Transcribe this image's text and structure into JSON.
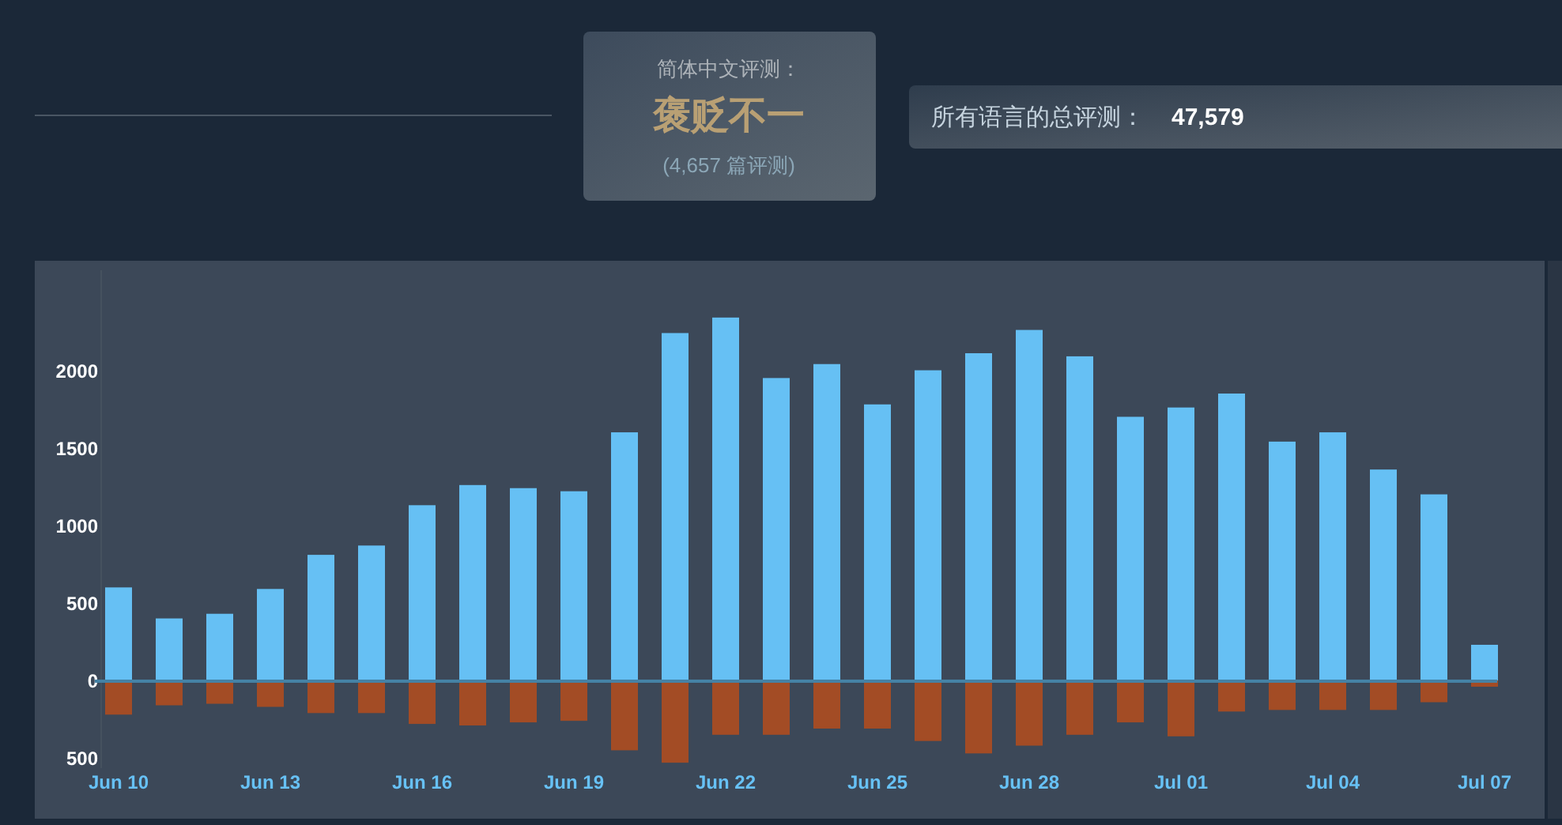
{
  "chart_data": {
    "type": "bar",
    "stacked": true,
    "annotations": [
      "简体中文评测：",
      "褒贬不一",
      "(4,657 篇评测)",
      "所有语言的总评测：",
      "47,579"
    ],
    "categories": [
      "Jun 10",
      null,
      null,
      "Jun 13",
      null,
      null,
      "Jun 16",
      null,
      null,
      "Jun 19",
      null,
      null,
      "Jun 22",
      null,
      null,
      "Jun 25",
      null,
      null,
      "Jun 28",
      null,
      null,
      "Jul 01",
      null,
      null,
      "Jul 04",
      null,
      null,
      "Jul 07"
    ],
    "series": [
      {
        "color": "#66c0f4",
        "values": [
          600,
          400,
          430,
          590,
          810,
          870,
          1130,
          1260,
          1240,
          1220,
          1600,
          2240,
          2340,
          1950,
          2040,
          1780,
          2000,
          2110,
          2260,
          2090,
          1700,
          1760,
          1850,
          1540,
          1600,
          1360,
          1200,
          230
        ]
      },
      {
        "color": "#a34c25",
        "values": [
          -210,
          -150,
          -140,
          -160,
          -200,
          -200,
          -270,
          -280,
          -260,
          -250,
          -440,
          -520,
          -340,
          -340,
          -300,
          -300,
          -380,
          -460,
          -410,
          -340,
          -260,
          -350,
          -190,
          -180,
          -180,
          -180,
          -130,
          -30
        ]
      }
    ],
    "ylim": [
      -560,
      2650
    ],
    "yticks": [
      {
        "value": -500,
        "label": "500"
      },
      0,
      500,
      1000,
      1500,
      2000
    ],
    "ref_lines": [
      {
        "axis": "y",
        "value": 0,
        "color": "#4582a5"
      }
    ],
    "grid": false
  }
}
